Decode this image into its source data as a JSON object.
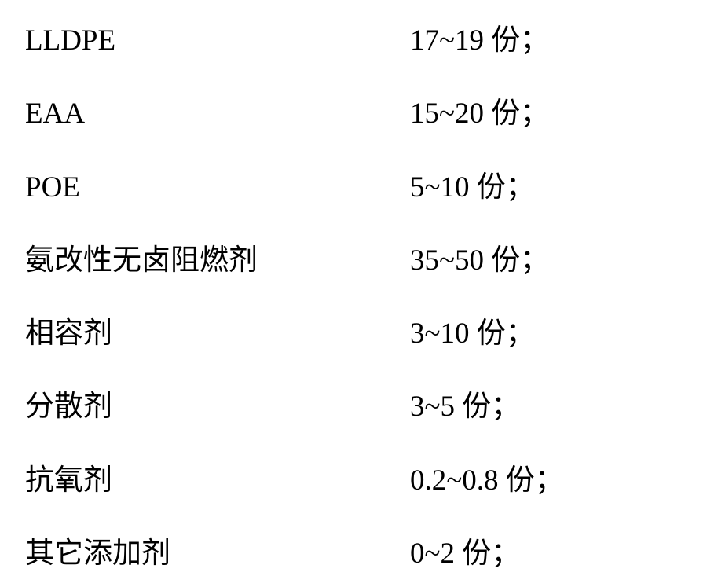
{
  "rows": [
    {
      "label": "LLDPE",
      "value": "17~19 份；"
    },
    {
      "label": "EAA",
      "value": "15~20 份；"
    },
    {
      "label": "POE",
      "value": "5~10 份；"
    },
    {
      "label": "氨改性无卤阻燃剂",
      "value": "35~50 份；"
    },
    {
      "label": "相容剂",
      "value": "3~10 份；"
    },
    {
      "label": "分散剂",
      "value": "3~5 份；"
    },
    {
      "label": "抗氧剂",
      "value": "0.2~0.8 份；"
    },
    {
      "label": "其它添加剂",
      "value": "0~2 份；"
    }
  ]
}
